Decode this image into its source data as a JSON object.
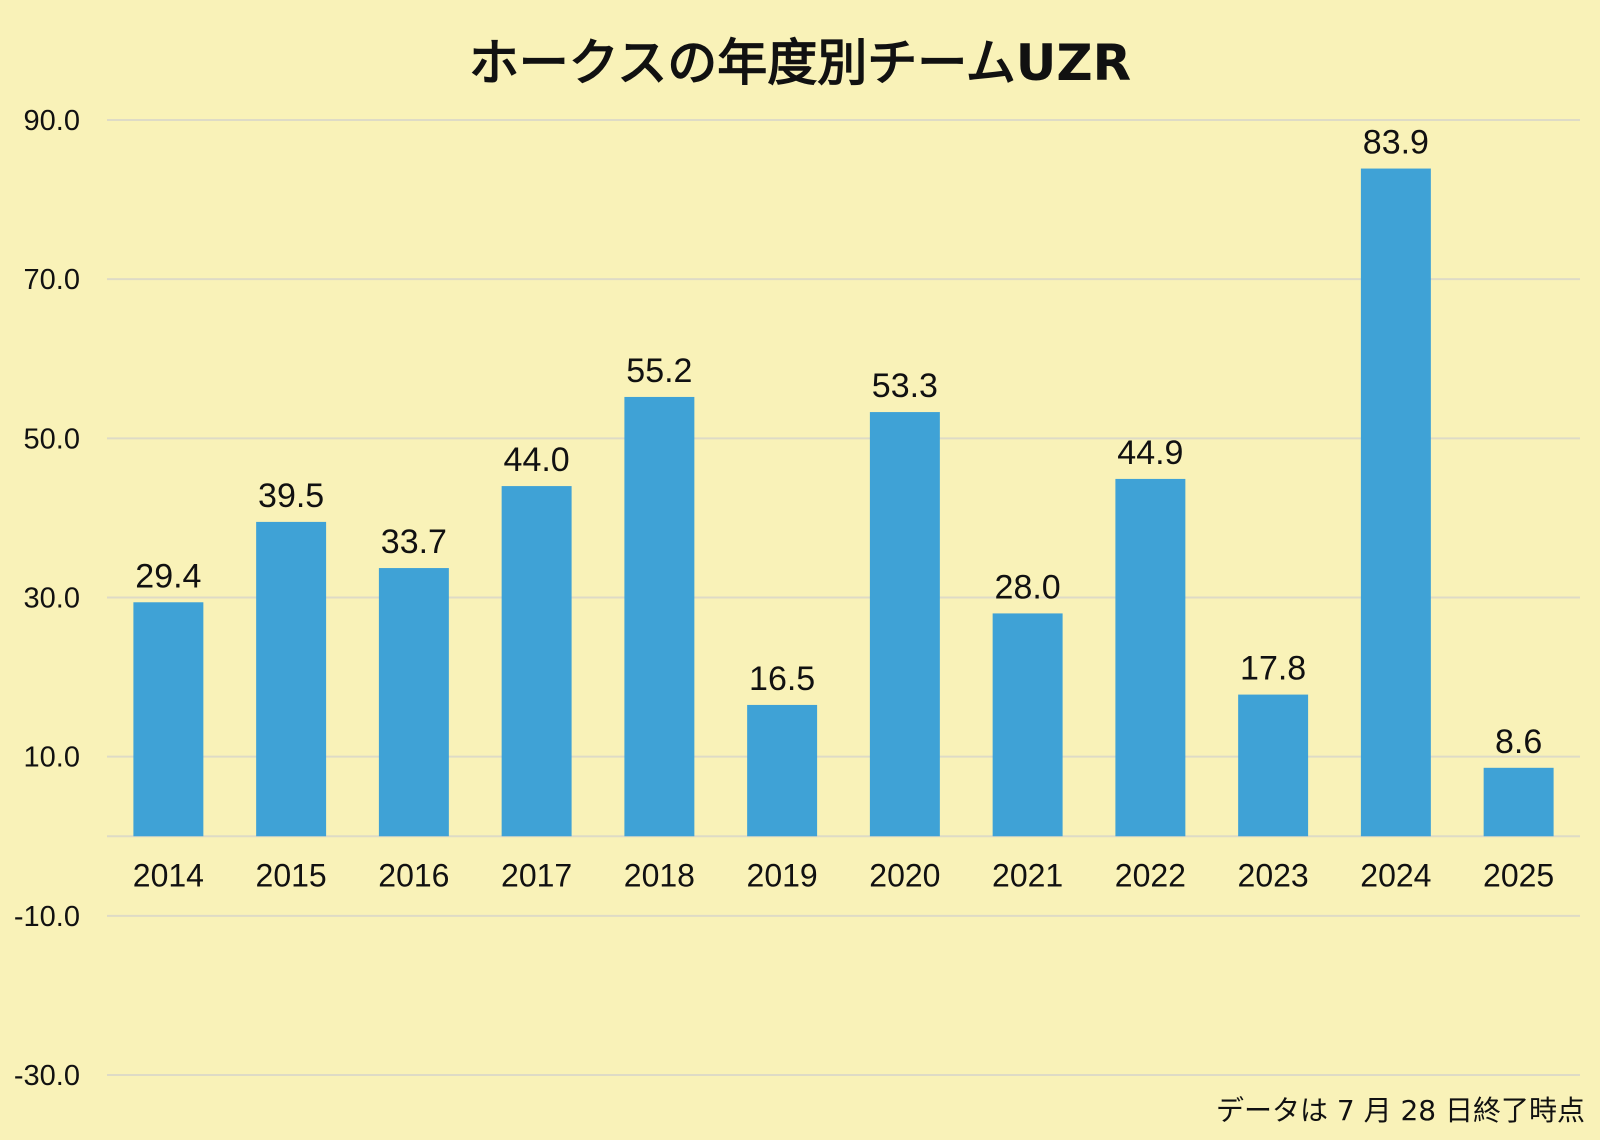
{
  "colors": {
    "background": "#f9f2b8",
    "bar": "#3fa2d6",
    "gridline": "#dedbc6",
    "text": "#111111"
  },
  "chart_data": {
    "type": "bar",
    "title": "ホークスの年度別チームUZR",
    "xlabel": "",
    "ylabel": "",
    "categories": [
      "2014",
      "2015",
      "2016",
      "2017",
      "2018",
      "2019",
      "2020",
      "2021",
      "2022",
      "2023",
      "2024",
      "2025"
    ],
    "values": [
      29.4,
      39.5,
      33.7,
      44.0,
      55.2,
      16.5,
      53.3,
      28.0,
      44.9,
      17.8,
      83.9,
      8.6
    ],
    "value_labels": [
      "29.4",
      "39.5",
      "33.7",
      "44.0",
      "55.2",
      "16.5",
      "53.3",
      "28.0",
      "44.9",
      "17.8",
      "83.9",
      "8.6"
    ],
    "ylim": [
      -30,
      90
    ],
    "y_ticks": [
      90,
      70,
      50,
      30,
      10,
      -10,
      -30
    ],
    "y_tick_labels": [
      "90.0",
      "70.0",
      "50.0",
      "30.0",
      "10.0",
      "-10.0",
      "-30.0"
    ],
    "grid": true,
    "legend": "none",
    "note": "データは 7 月 28 日終了時点"
  }
}
